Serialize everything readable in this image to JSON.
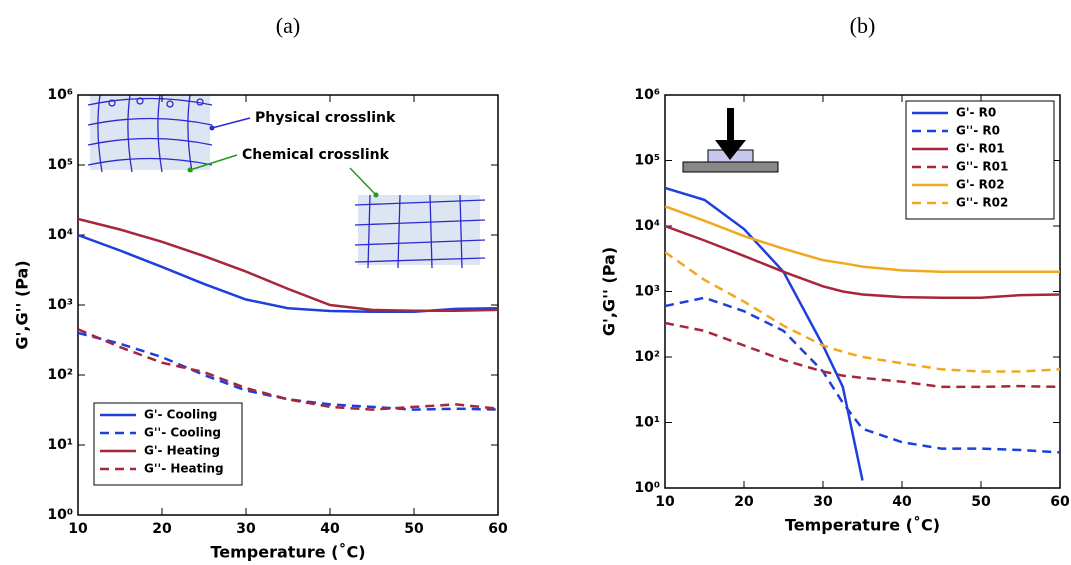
{
  "chart_data": [
    {
      "type": "line",
      "title": "(a)",
      "xlabel": "Temperature (˚C)",
      "ylabel": "G',G'' (Pa)",
      "x": [
        10,
        15,
        20,
        25,
        30,
        35,
        40,
        45,
        50,
        55,
        60
      ],
      "series": [
        {
          "name": "G'- Cooling",
          "color": "#1f3fdc",
          "dash": false,
          "values": [
            10000,
            6000,
            3500,
            2000,
            1200,
            900,
            820,
            800,
            800,
            880,
            900
          ]
        },
        {
          "name": "G''- Cooling",
          "color": "#1f3fdc",
          "dash": true,
          "values": [
            400,
            280,
            180,
            100,
            60,
            45,
            38,
            35,
            32,
            33,
            32
          ]
        },
        {
          "name": "G'- Heating",
          "color": "#a8263a",
          "dash": false,
          "values": [
            17000,
            12000,
            8000,
            5000,
            3000,
            1700,
            1000,
            850,
            830,
            830,
            850
          ]
        },
        {
          "name": "G''- Heating",
          "color": "#a8263a",
          "dash": true,
          "values": [
            450,
            250,
            150,
            110,
            65,
            45,
            35,
            32,
            35,
            38,
            33
          ]
        }
      ],
      "annotations": [
        {
          "text": "Physical crosslink",
          "color": "#2a2ad0"
        },
        {
          "text": "Chemical crosslink",
          "color": "#1f9a1f"
        }
      ],
      "xlim": [
        10,
        60
      ],
      "xticks": [
        10,
        20,
        30,
        40,
        50,
        60
      ],
      "ylim": [
        1,
        1000000
      ],
      "log_y": true,
      "yticks": [
        {
          "value": 1,
          "label": "10⁰"
        },
        {
          "value": 10,
          "label": "10¹"
        },
        {
          "value": 100,
          "label": "10²"
        },
        {
          "value": 1000,
          "label": "10³"
        },
        {
          "value": 10000,
          "label": "10⁴"
        },
        {
          "value": 100000,
          "label": "10⁵"
        },
        {
          "value": 1000000,
          "label": "10⁶"
        }
      ],
      "legend": "lower left"
    },
    {
      "type": "line",
      "title": "(b)",
      "xlabel": "Temperature (˚C)",
      "ylabel": "G',G'' (Pa)",
      "x": [
        10,
        15,
        20,
        25,
        30,
        32.5,
        35,
        40,
        45,
        50,
        55,
        60
      ],
      "series": [
        {
          "name": "G'- R0",
          "color": "#1f3fdc",
          "dash": false,
          "values": [
            38000,
            25000,
            9000,
            2000,
            150,
            35,
            1.3,
            null,
            null,
            null,
            null,
            null
          ]
        },
        {
          "name": "G''- R0",
          "color": "#1f3fdc",
          "dash": true,
          "values": [
            600,
            800,
            500,
            250,
            60,
            20,
            8,
            5,
            4,
            4,
            3.8,
            3.5
          ]
        },
        {
          "name": "G'- R01",
          "color": "#a8263a",
          "dash": false,
          "values": [
            10000,
            6000,
            3500,
            2000,
            1200,
            1000,
            900,
            820,
            800,
            800,
            880,
            900
          ]
        },
        {
          "name": "G''- R01",
          "color": "#a8263a",
          "dash": true,
          "values": [
            330,
            250,
            150,
            90,
            60,
            52,
            48,
            42,
            35,
            35,
            36,
            35
          ]
        },
        {
          "name": "G'- R02",
          "color": "#f2a81d",
          "dash": false,
          "values": [
            20000,
            12000,
            7000,
            4500,
            3000,
            2700,
            2400,
            2100,
            2000,
            2000,
            2000,
            2000
          ]
        },
        {
          "name": "G''- R02",
          "color": "#f2a81d",
          "dash": true,
          "values": [
            4000,
            1500,
            700,
            300,
            150,
            120,
            100,
            80,
            65,
            60,
            60,
            65
          ]
        }
      ],
      "xlim": [
        10,
        60
      ],
      "xticks": [
        10,
        20,
        30,
        40,
        50,
        60
      ],
      "ylim": [
        1,
        1000000
      ],
      "log_y": true,
      "yticks": [
        {
          "value": 1,
          "label": "10⁰"
        },
        {
          "value": 10,
          "label": "10¹"
        },
        {
          "value": 100,
          "label": "10²"
        },
        {
          "value": 1000,
          "label": "10³"
        },
        {
          "value": 10000,
          "label": "10⁴"
        },
        {
          "value": 100000,
          "label": "10⁵"
        },
        {
          "value": 1000000,
          "label": "10⁶"
        }
      ],
      "legend": "upper right"
    }
  ]
}
